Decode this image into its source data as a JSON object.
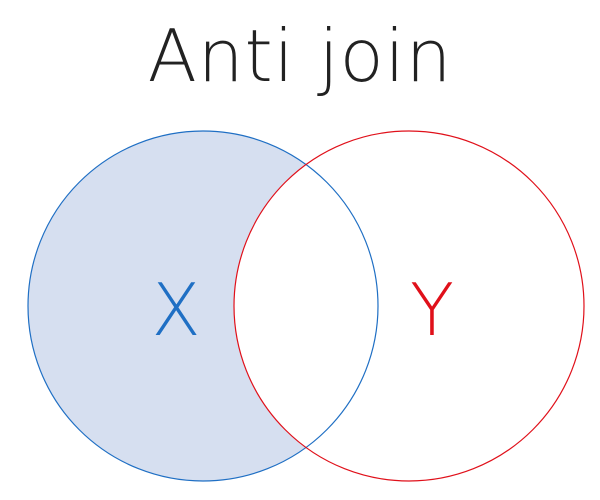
{
  "title": "Anti join",
  "sets": {
    "left": {
      "label": "X",
      "color": "#1f6fc4",
      "fill": "#d6dff0"
    },
    "right": {
      "label": "Y",
      "color": "#e0101a"
    }
  },
  "highlighted_region": "X only"
}
